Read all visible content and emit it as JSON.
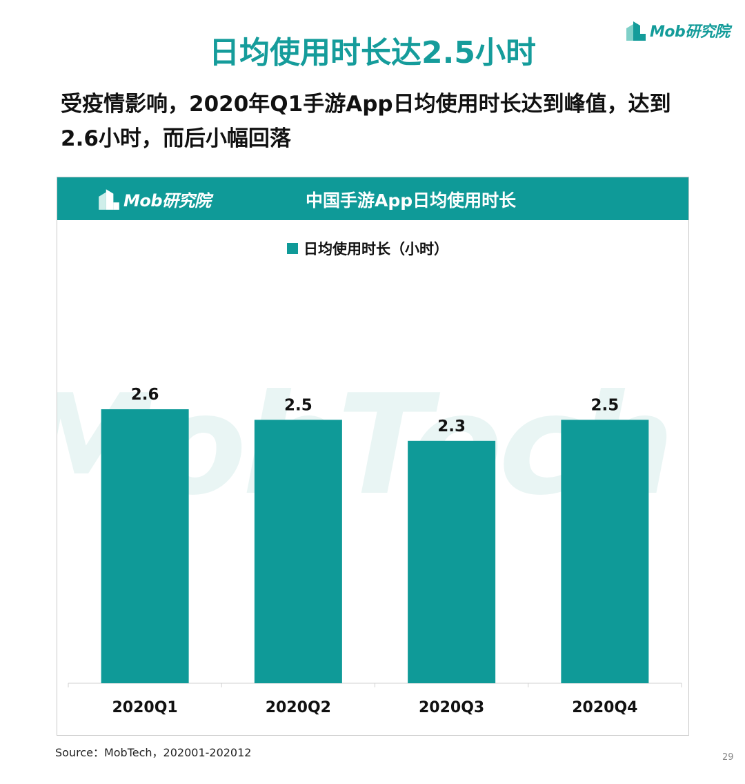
{
  "brand": {
    "name": "Mob研究院"
  },
  "page": {
    "title": "日均使用时长达2.5小时",
    "headline": "受疫情影响，2020年Q1手游App日均使用时长达到峰值，达到2.6小时，而后小幅回落",
    "source": "Source：MobTech，202001-202012",
    "page_number": "29",
    "watermark": "MobTech 袤博"
  },
  "chart_data": {
    "type": "bar",
    "title": "中国手游App日均使用时长",
    "categories": [
      "2020Q1",
      "2020Q2",
      "2020Q3",
      "2020Q4"
    ],
    "series": [
      {
        "name": "日均使用时长（小时）",
        "values": [
          2.6,
          2.5,
          2.3,
          2.5
        ]
      }
    ],
    "ylim": [
      0,
      2.6
    ],
    "legend": "top-center",
    "grid": false,
    "colors": {
      "bar": "#0f9a98",
      "header": "#0f9a98",
      "title": "#159c9b"
    }
  }
}
